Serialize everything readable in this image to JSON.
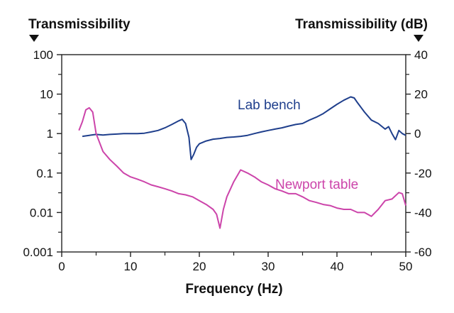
{
  "chart_data": {
    "type": "line",
    "title": "",
    "xlabel": "Frequency (Hz)",
    "ylabel_left": "Transmissibility",
    "ylabel_right": "Transmissibility (dB)",
    "x_range": [
      0,
      50
    ],
    "x_ticks": [
      0,
      10,
      20,
      30,
      40,
      50
    ],
    "x_tick_labels": [
      "0",
      "10",
      "20",
      "30",
      "40",
      "50"
    ],
    "y_left_scale": "log",
    "y_left_range": [
      0.001,
      100
    ],
    "y_left_ticks": [
      100,
      10,
      1,
      0.1,
      0.01,
      0.001
    ],
    "y_left_tick_labels": [
      "100",
      "10",
      "1",
      "0.1",
      "0.01",
      "0.001"
    ],
    "y_right_range": [
      -60,
      40
    ],
    "y_right_ticks": [
      40,
      20,
      0,
      -20,
      -40,
      -60
    ],
    "y_right_tick_labels": [
      "40",
      "20",
      "0",
      "-20",
      "-40",
      "-60"
    ],
    "grid": false,
    "series": [
      {
        "name": "Lab bench",
        "color": "#1f3f8c",
        "x": [
          3,
          4,
          5,
          6,
          7,
          8,
          9,
          10,
          11,
          12,
          13,
          14,
          15,
          16,
          17,
          17.5,
          18,
          18.5,
          18.8,
          19.2,
          19.6,
          20,
          21,
          22,
          23,
          24,
          25,
          26,
          27,
          28,
          29,
          30,
          31,
          32,
          33,
          34,
          35,
          36,
          37,
          38,
          39,
          40,
          41,
          42,
          42.5,
          43,
          44,
          45,
          46,
          47,
          47.5,
          48,
          48.5,
          49,
          49.5,
          50
        ],
        "y": [
          0.85,
          0.9,
          0.95,
          0.92,
          0.95,
          0.97,
          1.0,
          1.0,
          1.0,
          1.02,
          1.1,
          1.2,
          1.4,
          1.7,
          2.1,
          2.3,
          1.8,
          0.8,
          0.22,
          0.3,
          0.45,
          0.55,
          0.65,
          0.72,
          0.75,
          0.8,
          0.82,
          0.85,
          0.9,
          1.0,
          1.1,
          1.2,
          1.3,
          1.4,
          1.55,
          1.7,
          1.8,
          2.2,
          2.6,
          3.2,
          4.2,
          5.5,
          7.0,
          8.5,
          8.0,
          6.0,
          3.5,
          2.2,
          1.8,
          1.3,
          1.5,
          1.0,
          0.7,
          1.2,
          1.0,
          0.9
        ]
      },
      {
        "name": "Newport table",
        "color": "#cc44aa",
        "x": [
          2.5,
          3,
          3.5,
          4,
          4.5,
          5,
          6,
          7,
          8,
          9,
          10,
          11,
          12,
          13,
          14,
          15,
          16,
          17,
          18,
          19,
          20,
          21,
          22,
          22.5,
          23,
          23.5,
          24,
          25,
          26,
          27,
          28,
          29,
          30,
          31,
          32,
          33,
          34,
          35,
          36,
          37,
          38,
          39,
          40,
          41,
          42,
          43,
          44,
          45,
          46,
          47,
          48,
          49,
          49.5,
          50
        ],
        "y": [
          1.2,
          2.0,
          4.0,
          4.5,
          3.5,
          1.0,
          0.35,
          0.22,
          0.15,
          0.1,
          0.08,
          0.07,
          0.06,
          0.05,
          0.045,
          0.04,
          0.035,
          0.03,
          0.028,
          0.025,
          0.02,
          0.016,
          0.012,
          0.009,
          0.004,
          0.012,
          0.025,
          0.06,
          0.12,
          0.1,
          0.08,
          0.06,
          0.05,
          0.04,
          0.035,
          0.03,
          0.03,
          0.025,
          0.02,
          0.018,
          0.016,
          0.015,
          0.013,
          0.012,
          0.012,
          0.01,
          0.01,
          0.008,
          0.012,
          0.02,
          0.022,
          0.032,
          0.03,
          0.015
        ]
      }
    ],
    "series_labels_on_chart": [
      "Lab bench",
      "Newport table"
    ]
  }
}
